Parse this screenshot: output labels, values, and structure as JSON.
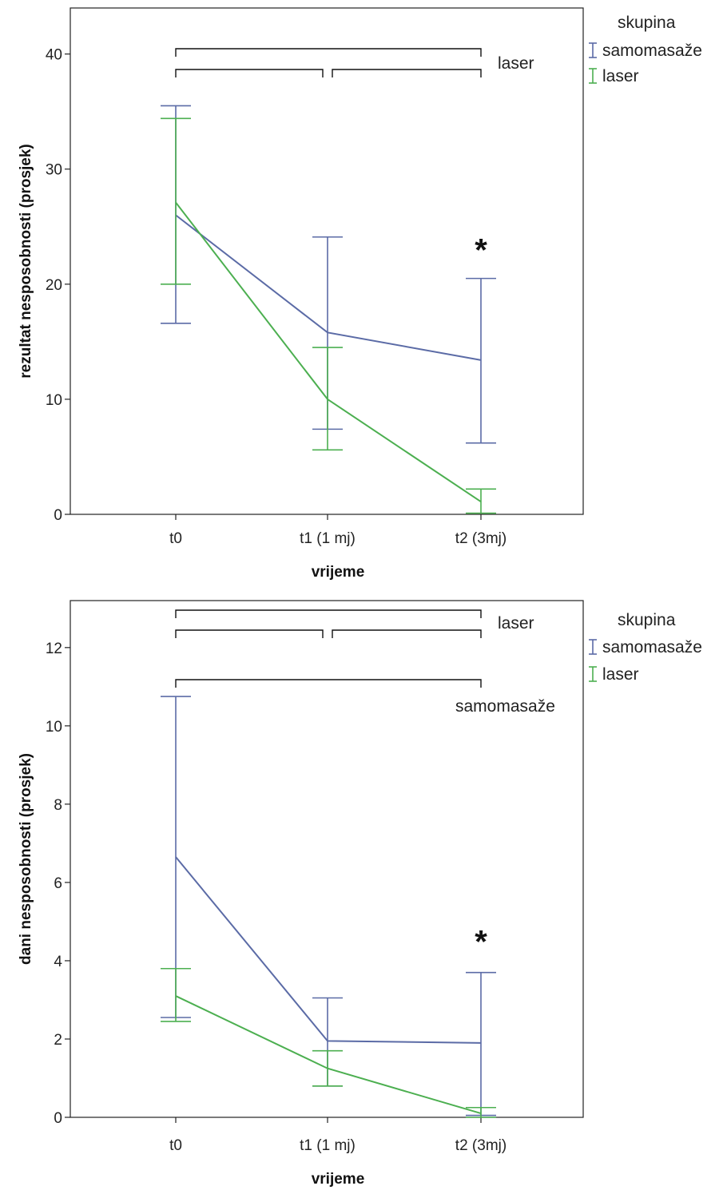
{
  "colors": {
    "samomasaze": "#5b6ba6",
    "laser": "#4caf50",
    "axis": "#222222",
    "bracket": "#111111"
  },
  "chart_data": [
    {
      "type": "line",
      "xlabel": "vrijeme",
      "ylabel": "rezultat nesposobnosti (prosjek)",
      "categories": [
        "t0",
        "t1 (1 mj)",
        "t2 (3mj)"
      ],
      "ylim": [
        0,
        44
      ],
      "yticks": [
        0,
        10,
        20,
        30,
        40
      ],
      "grid": false,
      "legend_title": "skupina",
      "legend_position": "top-right outside",
      "series": [
        {
          "name": "samomasaže",
          "color_key": "samomasaze",
          "values": [
            26.0,
            15.8,
            13.4
          ],
          "err_low": [
            16.6,
            7.4,
            6.2
          ],
          "err_high": [
            35.5,
            24.1,
            20.5
          ]
        },
        {
          "name": "laser",
          "color_key": "laser",
          "values": [
            27.1,
            10.0,
            1.1
          ],
          "err_low": [
            20.0,
            5.6,
            0.1
          ],
          "err_high": [
            34.4,
            14.5,
            2.2
          ]
        }
      ],
      "brackets": [
        {
          "from": 0,
          "to": 2,
          "level": 40.8
        },
        {
          "from": 0,
          "to": 1,
          "level": 39.0
        },
        {
          "from": 1,
          "to": 2,
          "level": 39.0
        }
      ],
      "annotations": [
        {
          "text": "laser",
          "role": "bracket-label"
        },
        {
          "text": "*",
          "category": 2,
          "y": 23.0
        }
      ]
    },
    {
      "type": "line",
      "xlabel": "vrijeme",
      "ylabel": "dani nesposobnosti (prosjek)",
      "categories": [
        "t0",
        "t1 (1 mj)",
        "t2 (3mj)"
      ],
      "ylim": [
        0,
        13.2
      ],
      "yticks": [
        0,
        2,
        4,
        6,
        8,
        10,
        12
      ],
      "grid": false,
      "legend_title": "skupina",
      "legend_position": "top-right outside",
      "series": [
        {
          "name": "samomasaže",
          "color_key": "samomasaze",
          "values": [
            6.65,
            1.95,
            1.9
          ],
          "err_low": [
            2.55,
            0.8,
            0.05
          ],
          "err_high": [
            10.75,
            3.05,
            3.7
          ]
        },
        {
          "name": "laser",
          "color_key": "laser",
          "values": [
            3.1,
            1.25,
            0.1
          ],
          "err_low": [
            2.45,
            0.8,
            0.0
          ],
          "err_high": [
            3.8,
            1.7,
            0.25
          ]
        }
      ],
      "brackets": [
        {
          "from": 0,
          "to": 2,
          "level": 12.95
        },
        {
          "from": 0,
          "to": 1,
          "level": 12.45
        },
        {
          "from": 1,
          "to": 2,
          "level": 12.45
        },
        {
          "from": 0,
          "to": 2,
          "level": 11.2
        }
      ],
      "annotations": [
        {
          "text": "laser",
          "role": "bracket-label"
        },
        {
          "text": "samomasaže",
          "role": "bracket-label"
        },
        {
          "text": "*",
          "category": 2,
          "y": 4.5
        }
      ]
    }
  ]
}
